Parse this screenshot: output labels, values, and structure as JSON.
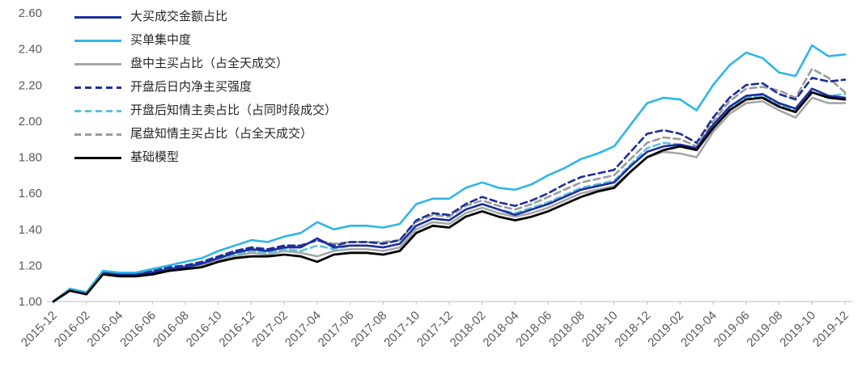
{
  "chart_data": {
    "type": "line",
    "title": "",
    "xlabel": "",
    "ylabel": "",
    "ylim": [
      1.0,
      2.6
    ],
    "y_tick_step": 0.2,
    "y_tick_labels": [
      "1.00",
      "1.20",
      "1.40",
      "1.60",
      "1.80",
      "2.00",
      "2.20",
      "2.40",
      "2.60"
    ],
    "grid": false,
    "legend_position": "top-left",
    "x_tick_step": 2,
    "x_tick_labels": [
      "2015-12",
      "2016-02",
      "2016-04",
      "2016-06",
      "2016-08",
      "2016-10",
      "2016-12",
      "2017-02",
      "2017-04",
      "2017-06",
      "2017-08",
      "2017-10",
      "2017-12",
      "2018-02",
      "2018-04",
      "2018-06",
      "2018-08",
      "2018-10",
      "2018-12",
      "2019-02",
      "2019-04",
      "2019-06",
      "2019-08",
      "2019-10",
      "2019-12"
    ],
    "x": [
      "2015-12",
      "2016-01",
      "2016-02",
      "2016-03",
      "2016-04",
      "2016-05",
      "2016-06",
      "2016-07",
      "2016-08",
      "2016-09",
      "2016-10",
      "2016-11",
      "2016-12",
      "2017-01",
      "2017-02",
      "2017-03",
      "2017-04",
      "2017-05",
      "2017-06",
      "2017-07",
      "2017-08",
      "2017-09",
      "2017-10",
      "2017-11",
      "2017-12",
      "2018-01",
      "2018-02",
      "2018-03",
      "2018-04",
      "2018-05",
      "2018-06",
      "2018-07",
      "2018-08",
      "2018-09",
      "2018-10",
      "2018-11",
      "2018-12",
      "2019-01",
      "2019-02",
      "2019-03",
      "2019-04",
      "2019-05",
      "2019-06",
      "2019-07",
      "2019-08",
      "2019-09",
      "2019-10",
      "2019-11",
      "2019-12"
    ],
    "series": [
      {
        "name": "大买成交金额占比",
        "color": "#1c2f9a",
        "dash": "solid",
        "values": [
          1.0,
          1.07,
          1.05,
          1.16,
          1.15,
          1.15,
          1.16,
          1.18,
          1.19,
          1.21,
          1.24,
          1.27,
          1.29,
          1.28,
          1.3,
          1.3,
          1.35,
          1.3,
          1.31,
          1.31,
          1.3,
          1.32,
          1.42,
          1.46,
          1.45,
          1.51,
          1.54,
          1.51,
          1.48,
          1.51,
          1.54,
          1.58,
          1.62,
          1.64,
          1.66,
          1.75,
          1.83,
          1.86,
          1.87,
          1.85,
          1.98,
          2.08,
          2.14,
          2.15,
          2.1,
          2.07,
          2.18,
          2.14,
          2.13
        ]
      },
      {
        "name": "买单集中度",
        "color": "#2fb5e6",
        "dash": "solid",
        "values": [
          1.0,
          1.07,
          1.05,
          1.17,
          1.16,
          1.16,
          1.18,
          1.2,
          1.22,
          1.24,
          1.28,
          1.31,
          1.34,
          1.33,
          1.36,
          1.38,
          1.44,
          1.4,
          1.42,
          1.42,
          1.41,
          1.43,
          1.54,
          1.57,
          1.57,
          1.63,
          1.66,
          1.63,
          1.62,
          1.65,
          1.7,
          1.74,
          1.79,
          1.82,
          1.86,
          1.98,
          2.1,
          2.13,
          2.12,
          2.06,
          2.2,
          2.31,
          2.38,
          2.35,
          2.27,
          2.25,
          2.42,
          2.36,
          2.37
        ]
      },
      {
        "name": "盘中主买占比（占全天成交）",
        "color": "#a6a6a6",
        "dash": "solid",
        "values": [
          1.0,
          1.06,
          1.04,
          1.15,
          1.14,
          1.15,
          1.16,
          1.17,
          1.19,
          1.2,
          1.23,
          1.25,
          1.27,
          1.26,
          1.28,
          1.27,
          1.25,
          1.28,
          1.29,
          1.29,
          1.28,
          1.3,
          1.4,
          1.44,
          1.43,
          1.49,
          1.52,
          1.49,
          1.47,
          1.49,
          1.52,
          1.56,
          1.6,
          1.62,
          1.64,
          1.72,
          1.8,
          1.83,
          1.82,
          1.8,
          1.94,
          2.04,
          2.1,
          2.11,
          2.06,
          2.02,
          2.13,
          2.1,
          2.1
        ]
      },
      {
        "name": "开盘后日内净主买强度",
        "color": "#1c2f9a",
        "dash": "dashed",
        "values": [
          1.0,
          1.07,
          1.05,
          1.16,
          1.15,
          1.15,
          1.17,
          1.19,
          1.2,
          1.22,
          1.25,
          1.28,
          1.3,
          1.29,
          1.31,
          1.31,
          1.34,
          1.31,
          1.33,
          1.33,
          1.32,
          1.34,
          1.45,
          1.49,
          1.48,
          1.54,
          1.58,
          1.55,
          1.53,
          1.56,
          1.6,
          1.65,
          1.69,
          1.71,
          1.73,
          1.83,
          1.93,
          1.95,
          1.93,
          1.88,
          2.02,
          2.13,
          2.2,
          2.21,
          2.15,
          2.12,
          2.24,
          2.22,
          2.23
        ]
      },
      {
        "name": "开盘后知情主卖占比（占同时段成交）",
        "color": "#5fc0de",
        "dash": "dashed",
        "values": [
          1.0,
          1.06,
          1.05,
          1.16,
          1.15,
          1.15,
          1.16,
          1.18,
          1.19,
          1.21,
          1.24,
          1.26,
          1.28,
          1.27,
          1.29,
          1.28,
          1.31,
          1.29,
          1.31,
          1.31,
          1.3,
          1.32,
          1.42,
          1.46,
          1.45,
          1.51,
          1.54,
          1.51,
          1.49,
          1.52,
          1.55,
          1.59,
          1.63,
          1.65,
          1.67,
          1.76,
          1.85,
          1.88,
          1.87,
          1.84,
          1.97,
          2.07,
          2.13,
          2.14,
          2.09,
          2.06,
          2.18,
          2.14,
          2.15
        ]
      },
      {
        "name": "尾盘知情主买占比（占全天成交）",
        "color": "#9b9b9b",
        "dash": "dashed",
        "values": [
          1.0,
          1.06,
          1.05,
          1.16,
          1.15,
          1.15,
          1.17,
          1.18,
          1.2,
          1.21,
          1.24,
          1.27,
          1.29,
          1.28,
          1.3,
          1.31,
          1.34,
          1.32,
          1.33,
          1.33,
          1.33,
          1.34,
          1.44,
          1.48,
          1.47,
          1.53,
          1.56,
          1.53,
          1.51,
          1.54,
          1.58,
          1.62,
          1.66,
          1.68,
          1.7,
          1.79,
          1.88,
          1.91,
          1.9,
          1.86,
          2.0,
          2.11,
          2.18,
          2.19,
          2.17,
          2.13,
          2.29,
          2.24,
          2.16
        ]
      },
      {
        "name": "基础模型",
        "color": "#000000",
        "dash": "solid",
        "values": [
          1.0,
          1.06,
          1.04,
          1.15,
          1.14,
          1.14,
          1.15,
          1.17,
          1.18,
          1.19,
          1.22,
          1.24,
          1.25,
          1.25,
          1.26,
          1.25,
          1.22,
          1.26,
          1.27,
          1.27,
          1.26,
          1.28,
          1.38,
          1.42,
          1.41,
          1.47,
          1.5,
          1.47,
          1.45,
          1.47,
          1.5,
          1.54,
          1.58,
          1.61,
          1.63,
          1.72,
          1.8,
          1.84,
          1.86,
          1.84,
          1.96,
          2.06,
          2.12,
          2.13,
          2.08,
          2.05,
          2.16,
          2.13,
          2.12
        ]
      }
    ],
    "axis_color": "#bfbfbf",
    "tick_label_color": "#595959"
  }
}
